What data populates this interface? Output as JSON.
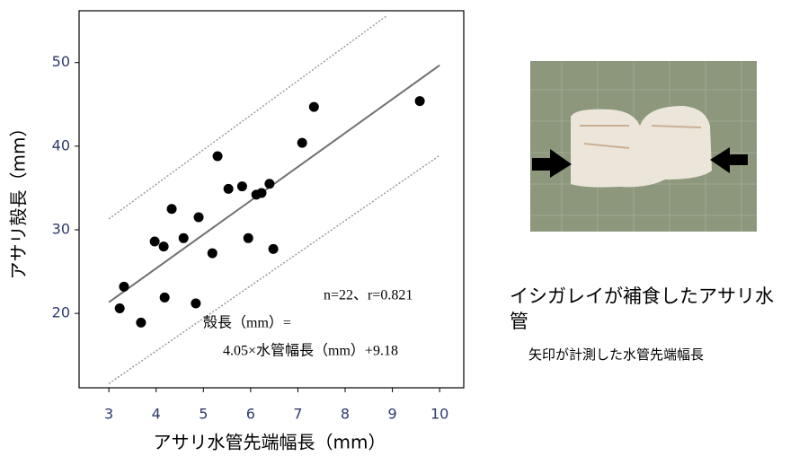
{
  "chart_data": {
    "type": "scatter",
    "xlabel": "アサリ水管先端幅長（mm）",
    "ylabel": "アサリ殻長（mm）",
    "x": [
      3.23,
      3.32,
      3.68,
      3.97,
      4.16,
      4.18,
      4.33,
      4.58,
      4.84,
      4.9,
      5.19,
      5.3,
      5.53,
      5.82,
      5.95,
      6.12,
      6.23,
      6.4,
      6.48,
      7.09,
      7.34,
      9.58
    ],
    "values": [
      20.6,
      23.2,
      18.9,
      28.6,
      28.0,
      21.9,
      32.5,
      29.0,
      21.2,
      31.5,
      27.2,
      38.8,
      34.9,
      35.2,
      29.0,
      34.2,
      34.4,
      35.5,
      27.7,
      40.4,
      44.7,
      45.4
    ],
    "color": "#000000",
    "fit": {
      "x": [
        3,
        10
      ],
      "values": [
        21.33,
        49.68
      ],
      "color": "#707070"
    },
    "bands": [
      {
        "x": [
          3,
          8.88
        ],
        "values": [
          31.3,
          55.6
        ],
        "color": "#9a9a9a"
      },
      {
        "x": [
          3,
          10
        ],
        "values": [
          11.6,
          38.9
        ],
        "color": "#9a9a9a"
      }
    ],
    "xlim": [
      2.37,
      10.51
    ],
    "ylim": [
      11.1,
      56.2
    ],
    "xticks": [
      3,
      4,
      5,
      6,
      7,
      8,
      9,
      10
    ],
    "yticks": [
      20,
      30,
      40,
      50
    ],
    "annotations": [
      "n=22、r=0.821",
      "殻長（mm）=",
      "4.05×水管幅長（mm）+9.18"
    ]
  },
  "caption": {
    "title": "イシガレイが補食したアサリ水管",
    "note": "矢印が計測した水管先端幅長"
  }
}
